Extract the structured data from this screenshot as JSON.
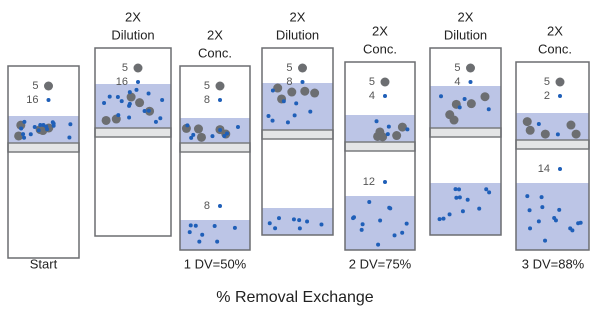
{
  "title": "% Removal Exchange",
  "steps": [
    {
      "upper": {
        "large": 5,
        "small": 16
      },
      "caption": "Start"
    },
    {
      "header": [
        "2X",
        "Dilution"
      ],
      "upper": {
        "large": 5,
        "small": 16
      }
    },
    {
      "header": [
        "2X",
        "Conc."
      ],
      "upper": {
        "large": 5,
        "small": 8
      },
      "lower": {
        "small": 8
      },
      "caption": "1 DV=50%"
    },
    {
      "header": [
        "2X",
        "Dilution"
      ],
      "upper": {
        "large": 5,
        "small": 8
      }
    },
    {
      "header": [
        "2X",
        "Conc."
      ],
      "upper": {
        "large": 5,
        "small": 4
      },
      "lower": {
        "small": 12
      },
      "caption": "2 DV=75%"
    },
    {
      "header": [
        "2X",
        "Dilution"
      ],
      "upper": {
        "large": 5,
        "small": 4
      }
    },
    {
      "header": [
        "2X",
        "Conc."
      ],
      "upper": {
        "large": 5,
        "small": 2
      },
      "lower": {
        "small": 14
      },
      "caption": "3 DV=88%"
    }
  ]
}
